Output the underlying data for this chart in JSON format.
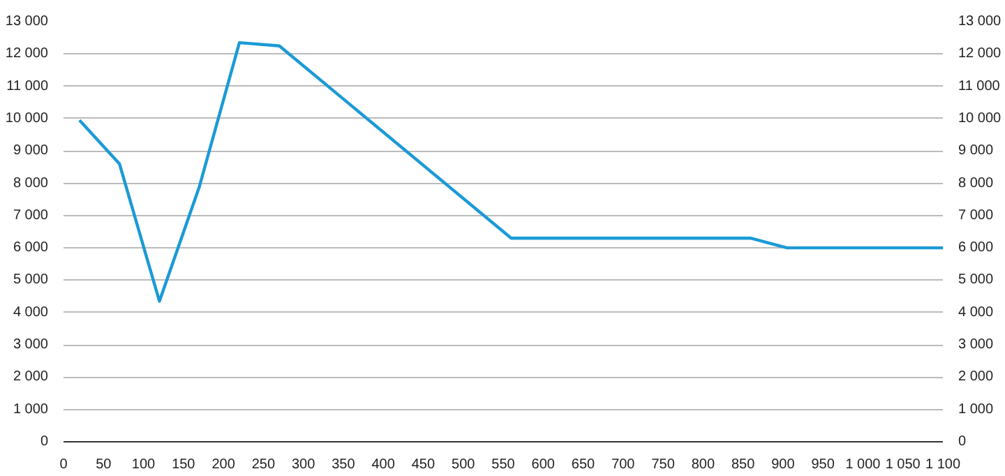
{
  "chart_data": {
    "type": "line",
    "x": [
      20,
      70,
      120,
      170,
      220,
      270,
      560,
      860,
      905,
      1100
    ],
    "series": [
      {
        "color": "#1b9ad6",
        "values": [
          9950,
          8600,
          4350,
          7900,
          12350,
          12250,
          6300,
          6300,
          6000,
          6000
        ]
      }
    ],
    "xlim": [
      0,
      1100
    ],
    "xticks": [
      0,
      50,
      100,
      150,
      200,
      250,
      300,
      350,
      400,
      450,
      500,
      550,
      600,
      650,
      700,
      750,
      800,
      850,
      900,
      950,
      {
        "value": 1000,
        "label": "1 000"
      },
      {
        "value": 1050,
        "label": "1 050"
      },
      {
        "value": 1100,
        "label": "1 100"
      }
    ],
    "ylim": [
      0,
      13000
    ],
    "yticks": [
      0,
      {
        "value": 1000,
        "label": "1 000"
      },
      {
        "value": 2000,
        "label": "2 000"
      },
      {
        "value": 3000,
        "label": "3 000"
      },
      {
        "value": 4000,
        "label": "4 000"
      },
      {
        "value": 5000,
        "label": "5 000"
      },
      {
        "value": 6000,
        "label": "6 000"
      },
      {
        "value": 7000,
        "label": "7 000"
      },
      {
        "value": 8000,
        "label": "8 000"
      },
      {
        "value": 9000,
        "label": "9 000"
      },
      {
        "value": 10000,
        "label": "10 000"
      },
      {
        "value": 11000,
        "label": "11 000"
      },
      {
        "value": 12000,
        "label": "12 000"
      },
      {
        "value": 13000,
        "label": "13 000"
      }
    ],
    "y2lim": [
      0,
      13000
    ],
    "y2ticks": [
      0,
      {
        "value": 1000,
        "label": "1 000"
      },
      {
        "value": 2000,
        "label": "2 000"
      },
      {
        "value": 3000,
        "label": "3 000"
      },
      {
        "value": 4000,
        "label": "4 000"
      },
      {
        "value": 5000,
        "label": "5 000"
      },
      {
        "value": 6000,
        "label": "6 000"
      },
      {
        "value": 7000,
        "label": "7 000"
      },
      {
        "value": 8000,
        "label": "8 000"
      },
      {
        "value": 9000,
        "label": "9 000"
      },
      {
        "value": 10000,
        "label": "10 000"
      },
      {
        "value": 11000,
        "label": "11 000"
      },
      {
        "value": 12000,
        "label": "12 000"
      },
      {
        "value": 13000,
        "label": "13 000"
      }
    ],
    "grid": "y",
    "line_style": "solid"
  }
}
